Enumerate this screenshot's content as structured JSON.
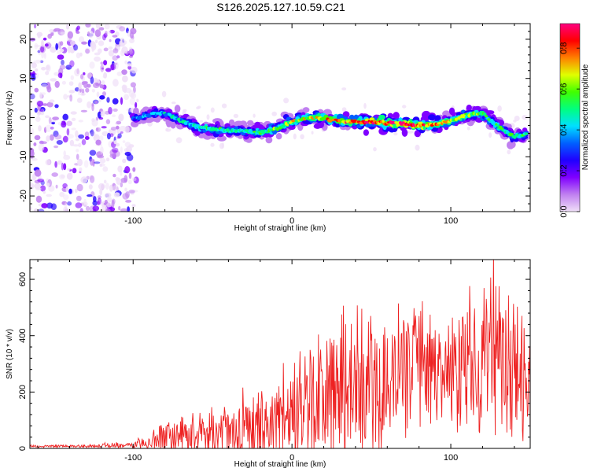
{
  "title": "S126.2025.127.10.59.C21",
  "colors": {
    "snr_line": "#ee2222",
    "frame": "#000000",
    "background": "#ffffff",
    "colormap": [
      "#f0e0f8",
      "#c080f0",
      "#8000ff",
      "#2000ff",
      "#0060ff",
      "#00e0ff",
      "#00ff80",
      "#40ff00",
      "#e0ff00",
      "#ff8000",
      "#ff0000",
      "#ff0080"
    ]
  },
  "chart_data": [
    {
      "type": "heatmap",
      "title": "S126.2025.127.10.59.C21",
      "xlabel": "Height of straight line (km)",
      "ylabel": "Frequency (Hz)",
      "xlim": [
        -165,
        150
      ],
      "ylim": [
        -24,
        24
      ],
      "xticks": [
        -100,
        0,
        100
      ],
      "yticks": [
        -20,
        -10,
        0,
        10,
        20
      ],
      "grid": false,
      "colorbar": {
        "label": "Normalized spectral amplitude",
        "range": [
          0,
          0.92
        ],
        "ticks": [
          "0.0",
          "0.2",
          "0.4",
          "0.6",
          "0.8"
        ]
      },
      "ridge": {
        "description_points_x": [
          -100,
          -80,
          -60,
          -40,
          -20,
          0,
          20,
          40,
          60,
          80,
          100,
          120,
          140,
          147
        ],
        "center_hz": [
          0,
          0.5,
          -1.5,
          -4,
          -3.5,
          -1,
          -0.5,
          -0.5,
          -2,
          -1.5,
          -1,
          1,
          -4.5,
          -4.5
        ],
        "peak_amplitude": [
          0.35,
          0.45,
          0.5,
          0.5,
          0.55,
          0.65,
          0.75,
          0.85,
          0.9,
          0.9,
          0.7,
          0.6,
          0.55,
          0.5
        ]
      },
      "noise_region_x": [
        -165,
        -98
      ]
    },
    {
      "type": "line",
      "xlabel": "Height of straight line (km)",
      "ylabel": "SNR (10 * v/v)",
      "xlim": [
        -165,
        150
      ],
      "ylim": [
        0,
        670
      ],
      "xticks": [
        -100,
        0,
        100
      ],
      "yticks": [
        0,
        200,
        400,
        600
      ],
      "grid": false,
      "envelope": {
        "x": [
          -165,
          -130,
          -100,
          -90,
          -80,
          -60,
          -40,
          -20,
          -10,
          0,
          10,
          20,
          30,
          40,
          50,
          60,
          70,
          80,
          90,
          100,
          110,
          115,
          120,
          125,
          130,
          140,
          150
        ],
        "base": [
          8,
          8,
          10,
          25,
          40,
          50,
          60,
          75,
          90,
          120,
          150,
          180,
          210,
          230,
          240,
          250,
          260,
          270,
          270,
          280,
          300,
          310,
          320,
          320,
          300,
          260,
          250
        ],
        "amp": [
          6,
          6,
          15,
          40,
          70,
          90,
          110,
          150,
          210,
          230,
          260,
          300,
          320,
          310,
          300,
          280,
          260,
          250,
          260,
          240,
          280,
          300,
          320,
          340,
          330,
          320,
          280
        ]
      }
    }
  ]
}
